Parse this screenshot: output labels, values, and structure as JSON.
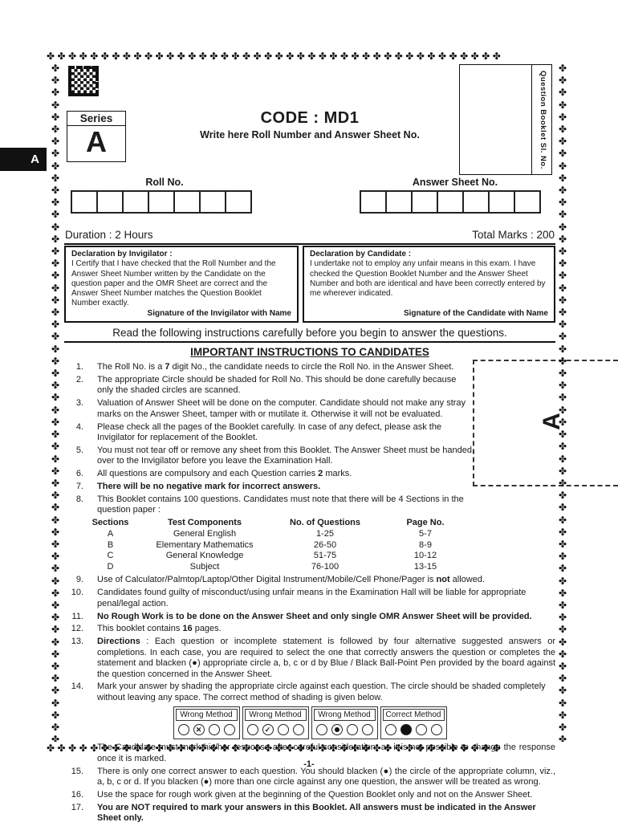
{
  "page": {
    "border_glyph": "✤",
    "side_tab": "A",
    "section_marker": "A",
    "page_number": "-1-"
  },
  "header": {
    "series_label": "Series",
    "series_value": "A",
    "code_title": "CODE : MD1",
    "code_subtitle": "Write here Roll Number and Answer Sheet No.",
    "booklet_sl_label": "Question Booklet Sl. No.",
    "roll_label": "Roll No.",
    "roll_box_count": 7,
    "answer_label": "Answer Sheet No.",
    "answer_box_count": 7,
    "duration": "Duration : 2 Hours",
    "total_marks": "Total Marks : 200"
  },
  "declarations": {
    "invigilator": {
      "title": "Declaration by Invigilator :",
      "body": "I Certify that I have checked that the Roll Number and the Answer Sheet Number written by the Candidate on the question paper and the OMR Sheet are correct and the Answer Sheet Number matches the Question Booklet Number exactly.",
      "signature": "Signature of the Invigilator with Name"
    },
    "candidate": {
      "title": "Declaration by Candidate :",
      "body": "I undertake not to employ any unfair means in this exam. I have checked the Question Booklet Number and the Answer Sheet Number and both are identical and have been correctly entered by me wherever indicated.",
      "signature": "Signature of the Candidate with Name"
    }
  },
  "instructions": {
    "read_note": "Read the following instructions carefully before you begin to answer the questions.",
    "heading": "IMPORTANT INSTRUCTIONS TO CANDIDATES",
    "items": [
      {
        "no": "1.",
        "text": "The Roll No. is a **7** digit No., the candidate needs to circle the Roll No. in the Answer Sheet."
      },
      {
        "no": "2.",
        "text": "The appropriate Circle should be shaded for Roll No. This should be done carefully because only the shaded circles are scanned.",
        "narrow": true
      },
      {
        "no": "3.",
        "text": "Valuation of Answer Sheet will be done on the computer. Candidate should not make any stray marks on the Answer Sheet, tamper with or mutilate it. Otherwise it will not be evaluated.",
        "narrow": true
      },
      {
        "no": "4.",
        "text": "Please check all the pages of the Booklet carefully. In case of any defect, please ask the Invigilator for replacement of the Booklet.",
        "narrow": true
      },
      {
        "no": "5.",
        "text": "You must not tear off or remove any sheet from this Booklet. The Answer Sheet must be handed over to the Invigilator before you leave the Examination Hall.",
        "narrow": true
      },
      {
        "no": "6.",
        "text": "All questions are compulsory and each Question carries **2** marks.",
        "narrow": true
      },
      {
        "no": "7.",
        "text": "**There will be no negative mark for incorrect answers.**",
        "narrow": true
      },
      {
        "no": "8.",
        "text": "This Booklet contains 100 questions. Candidates must note that there will be 4 Sections in the question paper :",
        "narrow": true,
        "after": "table"
      },
      {
        "no": "9.",
        "text": "Use of Calculator/Palmtop/Laptop/Other Digital Instrument/Mobile/Cell Phone/Pager is **not** allowed."
      },
      {
        "no": "10.",
        "text": "Candidates found guilty of misconduct/using unfair means in the Examination Hall will be liable for appropriate penal/legal action."
      },
      {
        "no": "11.",
        "text": "**No Rough Work is to be done on the Answer Sheet and only single OMR Answer Sheet will be provided.**"
      },
      {
        "no": "12.",
        "text": "This booklet contains **16** pages."
      },
      {
        "no": "13.",
        "text": "**Directions** : Each question or incomplete statement is followed by four alternative suggested answers or completions. In each case, you are required to select the one that correctly answers the question or completes the statement and blacken (●) appropriate circle a, b, c or d by Blue / Black Ball-Point Pen provided by the board against the question concerned in the Answer Sheet.",
        "justify": true
      },
      {
        "no": "14.",
        "text": "Mark your answer by shading the appropriate circle against each question. The circle should be shaded completely without leaving any space. The correct method of shading is given below.",
        "after": "figure"
      },
      {
        "no": "15.",
        "text": "There is only one correct answer to each question. You should blacken (●) the circle of the appropriate column, viz., a, b, c or d. If you blacken (●) more than one circle against any one question, the answer will be treated as wrong.",
        "justify": true
      },
      {
        "no": "16.",
        "text": "Use the space for rough work given at the beginning of the Question Booklet only and not on the Answer Sheet."
      },
      {
        "no": "17.",
        "text": "**You are NOT required to mark your answers in this Booklet. All answers must be indicated in the Answer Sheet only.**"
      }
    ],
    "post_figure_note": "The Candidate must mark his/her response after careful consideration, as it is not possible to change the response once it is marked.",
    "sections_table": {
      "headers": [
        "Sections",
        "Test Components",
        "No. of Questions",
        "Page No."
      ],
      "rows": [
        [
          "A",
          "General English",
          "1-25",
          "5-7"
        ],
        [
          "B",
          "Elementary Mathematics",
          "26-50",
          "8-9"
        ],
        [
          "C",
          "General Knowledge",
          "51-75",
          "10-12"
        ],
        [
          "D",
          "Subject",
          "76-100",
          "13-15"
        ]
      ]
    },
    "shading": {
      "methods": [
        {
          "label": "Wrong Method",
          "mark": "cross"
        },
        {
          "label": "Wrong Method",
          "mark": "check"
        },
        {
          "label": "Wrong Method",
          "mark": "dot"
        },
        {
          "label": "Correct Method",
          "mark": "filled"
        }
      ],
      "circles_per_box": 4,
      "marked_index": 1
    }
  }
}
